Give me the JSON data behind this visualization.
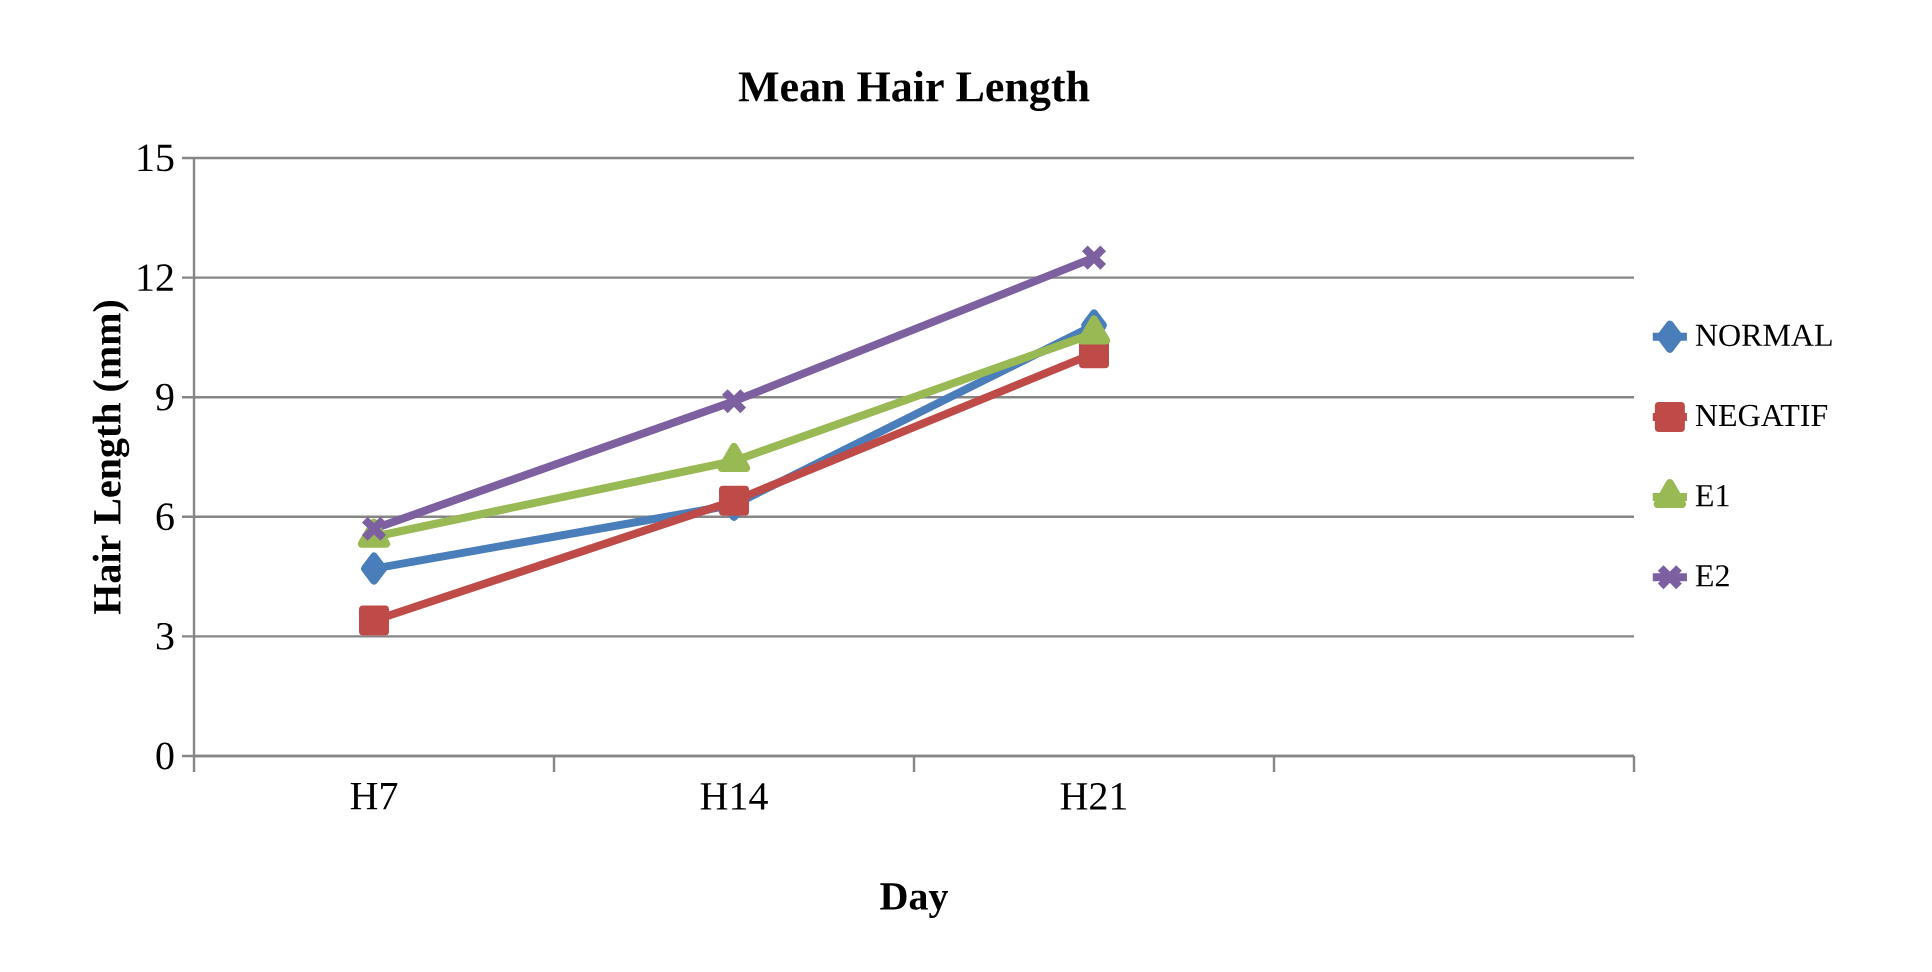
{
  "chart_data": {
    "type": "line",
    "title": "Mean Hair Length",
    "xlabel": "Day",
    "ylabel": "Hair Length (mm)",
    "categories": [
      "H7",
      "H14",
      "H21",
      null
    ],
    "series": [
      {
        "name": "NORMAL",
        "color": "#4a7ebb",
        "marker": "diamond",
        "values": [
          4.7,
          6.3,
          10.8,
          null
        ]
      },
      {
        "name": "NEGATIF",
        "color": "#be4b48",
        "marker": "square",
        "values": [
          3.4,
          6.4,
          10.1,
          null
        ]
      },
      {
        "name": "E1",
        "color": "#98b954",
        "marker": "triangle",
        "values": [
          5.5,
          7.4,
          10.6,
          null
        ]
      },
      {
        "name": "E2",
        "color": "#7d60a0",
        "marker": "cross",
        "values": [
          5.7,
          8.9,
          12.5,
          null
        ]
      }
    ],
    "ylim": [
      0,
      15
    ],
    "yticks": [
      0,
      3,
      6,
      9,
      12,
      15
    ],
    "grid": "y",
    "legend": "right",
    "line_style": "solid"
  }
}
